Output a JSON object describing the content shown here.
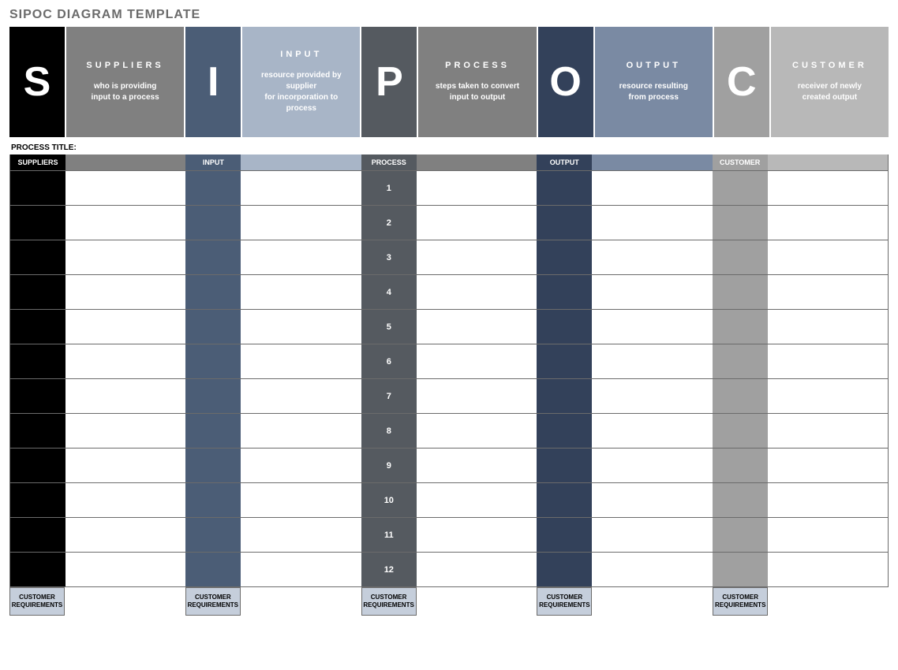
{
  "title": "SIPOC DIAGRAM TEMPLATE",
  "process_title_label": "PROCESS TITLE:",
  "columns": [
    {
      "letter": "S",
      "label": "SUPPLIERS",
      "description": "who is providing\ninput to a process",
      "header_label": "SUPPLIERS",
      "letter_bg": "#000000",
      "desc_bg": "#808080",
      "col_header_bg": "#808080",
      "narrow_bg": "#000000",
      "wide_header_bg": "#808080",
      "footer_label": "CUSTOMER\nREQUIREMENTS"
    },
    {
      "letter": "I",
      "label": "INPUT",
      "description": "resource provided by supplier\nfor incorporation to process",
      "header_label": "INPUT",
      "letter_bg": "#4b5d76",
      "desc_bg": "#a8b5c7",
      "col_header_bg": "#a8b5c7",
      "narrow_bg": "#4b5d76",
      "wide_header_bg": "#a8b5c7",
      "footer_label": "CUSTOMER\nREQUIREMENTS"
    },
    {
      "letter": "P",
      "label": "PROCESS",
      "description": "steps taken to convert\ninput to output",
      "header_label": "PROCESS",
      "letter_bg": "#555a60",
      "desc_bg": "#808080",
      "col_header_bg": "#808080",
      "narrow_bg": "#555a60",
      "wide_header_bg": "#808080",
      "show_row_numbers": true,
      "footer_label": "CUSTOMER\nREQUIREMENTS"
    },
    {
      "letter": "O",
      "label": "OUTPUT",
      "description": "resource resulting\nfrom process",
      "header_label": "OUTPUT",
      "letter_bg": "#33415a",
      "desc_bg": "#7a8aa3",
      "col_header_bg": "#7a8aa3",
      "narrow_bg": "#33415a",
      "wide_header_bg": "#7a8aa3",
      "footer_label": "CUSTOMER\nREQUIREMENTS"
    },
    {
      "letter": "C",
      "label": "CUSTOMER",
      "description": "receiver of newly\ncreated output",
      "header_label": "CUSTOMER",
      "letter_bg": "#a0a0a0",
      "desc_bg": "#b8b8b8",
      "col_header_bg": "#b8b8b8",
      "narrow_bg": "#a0a0a0",
      "wide_header_bg": "#b8b8b8",
      "footer_label": "CUSTOMER\nREQUIREMENTS"
    }
  ],
  "row_count": 12,
  "footer_bg": "#c5cedb"
}
